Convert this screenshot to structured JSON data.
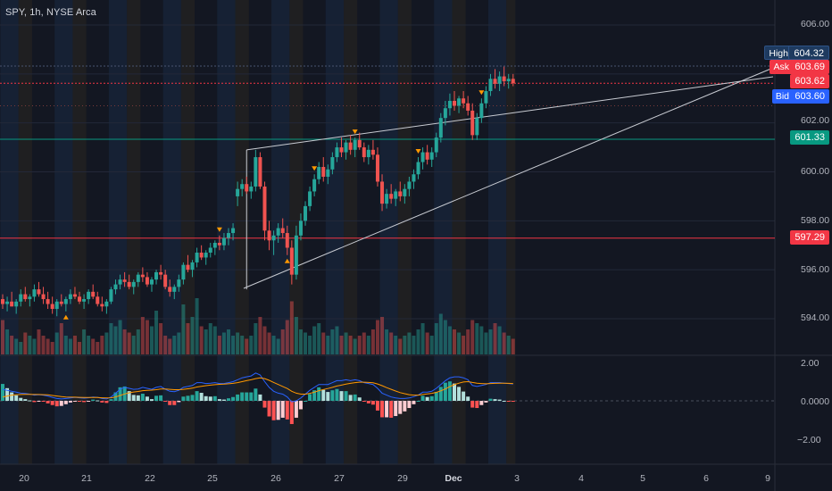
{
  "header": {
    "symbol": "SPY, 1h, NYSE Arca"
  },
  "price_axis": {
    "ticks": [
      "606.00",
      "604.00",
      "602.00",
      "600.00",
      "598.00",
      "596.00",
      "594.00"
    ],
    "tick_values": [
      606,
      604,
      602,
      600,
      598,
      596,
      594
    ],
    "high": {
      "label": "High",
      "value": "604.32",
      "color": "#1e3a5f"
    },
    "ask": {
      "label": "Ask",
      "value": "603.69",
      "color": "#f23645"
    },
    "last": {
      "value": "603.62",
      "color": "#f23645"
    },
    "bid": {
      "label": "Bid",
      "value": "603.60",
      "color": "#2962ff"
    },
    "level_green": {
      "value": "601.33",
      "color": "#089981"
    },
    "level_red": {
      "value": "597.29",
      "color": "#f23645"
    }
  },
  "macd_axis": {
    "ticks": [
      "2.00",
      "0.0000",
      "−2.00"
    ],
    "tick_values": [
      2,
      0,
      -2
    ]
  },
  "time_axis": {
    "labels": [
      "20",
      "21",
      "22",
      "25",
      "26",
      "27",
      "29",
      "Dec",
      "3",
      "4",
      "5",
      "6",
      "9"
    ]
  },
  "colors": {
    "up": "#26a69a",
    "down": "#ef5350",
    "session_blue": "#1a2a44",
    "session_orange": "#2a2620",
    "macd_line": "#2962ff",
    "signal_line": "#ff9800",
    "trend_line": "#c8cbd2",
    "marker": "#ff9800"
  },
  "chart_data": {
    "type": "candlestick",
    "price_range": [
      593.0,
      607.0
    ],
    "macd_range": [
      -3.0,
      2.4
    ],
    "levels": [
      601.33,
      597.29
    ],
    "candles": [
      [
        594.8,
        595.0,
        594.4,
        594.6
      ],
      [
        594.6,
        594.9,
        594.3,
        594.7
      ],
      [
        594.7,
        595.1,
        594.5,
        594.5
      ],
      [
        594.5,
        594.8,
        594.2,
        594.7
      ],
      [
        594.7,
        595.2,
        594.5,
        595.0
      ],
      [
        595.0,
        595.3,
        594.7,
        594.8
      ],
      [
        594.8,
        595.0,
        594.5,
        594.9
      ],
      [
        594.9,
        595.4,
        594.7,
        595.2
      ],
      [
        595.2,
        595.5,
        594.9,
        595.0
      ],
      [
        595.0,
        595.3,
        594.6,
        594.8
      ],
      [
        594.8,
        595.1,
        594.4,
        594.6
      ],
      [
        594.6,
        594.9,
        594.2,
        594.4
      ],
      [
        594.4,
        594.8,
        594.1,
        594.7
      ],
      [
        594.7,
        595.0,
        594.5,
        594.6
      ],
      [
        594.6,
        594.9,
        594.3,
        594.8
      ],
      [
        594.8,
        595.2,
        594.6,
        595.0
      ],
      [
        595.0,
        595.3,
        594.8,
        594.9
      ],
      [
        594.9,
        595.1,
        594.6,
        594.7
      ],
      [
        594.7,
        595.0,
        594.4,
        594.8
      ],
      [
        594.8,
        595.2,
        594.6,
        595.1
      ],
      [
        595.1,
        595.4,
        594.8,
        594.9
      ],
      [
        594.9,
        595.1,
        594.5,
        594.6
      ],
      [
        594.6,
        594.9,
        594.3,
        594.5
      ],
      [
        594.5,
        594.8,
        594.2,
        594.7
      ],
      [
        594.7,
        595.3,
        594.6,
        595.2
      ],
      [
        595.2,
        595.6,
        595.0,
        595.4
      ],
      [
        595.4,
        595.8,
        595.2,
        595.6
      ],
      [
        595.6,
        595.9,
        595.3,
        595.5
      ],
      [
        595.5,
        595.8,
        595.2,
        595.3
      ],
      [
        595.3,
        595.6,
        595.0,
        595.5
      ],
      [
        595.5,
        595.9,
        595.3,
        595.8
      ],
      [
        595.8,
        596.1,
        595.5,
        595.7
      ],
      [
        595.7,
        595.9,
        595.3,
        595.4
      ],
      [
        595.4,
        595.7,
        595.1,
        595.6
      ],
      [
        595.6,
        596.0,
        595.4,
        595.9
      ],
      [
        595.9,
        596.2,
        595.6,
        595.8
      ],
      [
        595.8,
        596.0,
        595.2,
        595.3
      ],
      [
        595.3,
        595.6,
        594.9,
        595.1
      ],
      [
        595.1,
        595.4,
        594.8,
        595.3
      ],
      [
        595.3,
        595.8,
        595.1,
        595.6
      ],
      [
        595.6,
        596.3,
        595.4,
        596.2
      ],
      [
        596.2,
        596.6,
        595.9,
        596.0
      ],
      [
        596.0,
        596.4,
        595.7,
        596.3
      ],
      [
        596.3,
        596.9,
        596.1,
        596.7
      ],
      [
        596.7,
        597.0,
        596.4,
        596.5
      ],
      [
        596.5,
        596.8,
        596.2,
        596.7
      ],
      [
        596.7,
        597.1,
        596.5,
        596.9
      ],
      [
        596.9,
        597.2,
        596.6,
        597.1
      ],
      [
        597.1,
        597.4,
        596.8,
        597.0
      ],
      [
        597.0,
        597.5,
        596.8,
        597.3
      ],
      [
        597.3,
        597.7,
        597.0,
        597.5
      ],
      [
        597.5,
        597.9,
        597.2,
        597.7
      ],
      [
        599.0,
        599.6,
        598.6,
        599.3
      ],
      [
        599.3,
        599.7,
        599.0,
        599.5
      ],
      [
        599.5,
        599.8,
        599.1,
        599.2
      ],
      [
        599.2,
        599.6,
        598.9,
        599.4
      ],
      [
        599.4,
        600.9,
        599.2,
        600.6
      ],
      [
        600.6,
        600.8,
        599.3,
        599.4
      ],
      [
        599.4,
        599.6,
        597.2,
        597.6
      ],
      [
        597.6,
        598.0,
        596.8,
        597.2
      ],
      [
        597.2,
        597.6,
        596.6,
        597.4
      ],
      [
        597.4,
        597.9,
        597.1,
        597.7
      ],
      [
        597.7,
        598.1,
        597.3,
        597.5
      ],
      [
        597.5,
        597.8,
        596.6,
        596.9
      ],
      [
        596.9,
        597.2,
        595.4,
        595.8
      ],
      [
        595.8,
        597.8,
        595.6,
        597.4
      ],
      [
        597.4,
        598.3,
        597.2,
        598.0
      ],
      [
        598.0,
        598.8,
        597.8,
        598.6
      ],
      [
        598.6,
        599.4,
        598.4,
        599.2
      ],
      [
        599.2,
        599.9,
        599.0,
        599.7
      ],
      [
        599.7,
        600.4,
        599.5,
        600.2
      ],
      [
        600.2,
        600.6,
        599.6,
        599.8
      ],
      [
        599.8,
        600.3,
        599.5,
        600.1
      ],
      [
        600.1,
        600.8,
        599.9,
        600.6
      ],
      [
        600.6,
        601.2,
        600.4,
        601.0
      ],
      [
        601.0,
        601.4,
        600.6,
        600.8
      ],
      [
        600.8,
        601.3,
        600.5,
        601.2
      ],
      [
        601.2,
        601.5,
        600.7,
        600.9
      ],
      [
        600.9,
        601.4,
        600.6,
        601.3
      ],
      [
        601.3,
        601.6,
        600.9,
        601.0
      ],
      [
        601.0,
        601.2,
        600.4,
        600.6
      ],
      [
        600.6,
        601.1,
        600.3,
        600.9
      ],
      [
        600.9,
        601.3,
        600.5,
        600.7
      ],
      [
        600.7,
        601.0,
        599.4,
        599.6
      ],
      [
        599.6,
        599.9,
        598.4,
        598.7
      ],
      [
        598.7,
        599.3,
        598.5,
        599.1
      ],
      [
        599.1,
        599.5,
        598.7,
        598.9
      ],
      [
        598.9,
        599.3,
        598.6,
        599.2
      ],
      [
        599.2,
        599.6,
        598.8,
        599.0
      ],
      [
        599.0,
        599.5,
        598.7,
        599.3
      ],
      [
        599.3,
        599.8,
        599.0,
        599.6
      ],
      [
        599.6,
        600.1,
        599.3,
        599.9
      ],
      [
        599.9,
        600.6,
        599.7,
        600.4
      ],
      [
        600.4,
        601.0,
        600.1,
        600.8
      ],
      [
        600.8,
        601.1,
        600.3,
        600.5
      ],
      [
        600.5,
        601.0,
        600.2,
        600.8
      ],
      [
        600.8,
        601.6,
        600.6,
        601.4
      ],
      [
        601.4,
        602.4,
        601.2,
        602.2
      ],
      [
        602.2,
        602.9,
        601.9,
        602.6
      ],
      [
        602.6,
        603.2,
        602.3,
        602.9
      ],
      [
        602.9,
        603.3,
        602.5,
        602.7
      ],
      [
        602.7,
        603.1,
        602.4,
        603.0
      ],
      [
        603.0,
        603.3,
        602.6,
        602.8
      ],
      [
        602.8,
        603.1,
        602.3,
        602.5
      ],
      [
        602.5,
        602.8,
        601.3,
        601.5
      ],
      [
        601.5,
        602.4,
        601.3,
        602.2
      ],
      [
        602.2,
        603.0,
        602.0,
        602.8
      ],
      [
        602.8,
        603.5,
        602.6,
        603.3
      ],
      [
        603.3,
        604.0,
        603.1,
        603.8
      ],
      [
        603.8,
        604.2,
        603.4,
        603.6
      ],
      [
        603.6,
        604.1,
        603.3,
        603.9
      ],
      [
        603.9,
        604.3,
        603.5,
        603.7
      ],
      [
        603.7,
        604.0,
        603.4,
        603.8
      ],
      [
        603.8,
        604.0,
        603.5,
        603.62
      ]
    ],
    "volumes": [
      0.55,
      0.4,
      0.3,
      0.25,
      0.2,
      0.35,
      0.3,
      0.25,
      0.4,
      0.3,
      0.25,
      0.2,
      0.35,
      0.5,
      0.3,
      0.25,
      0.3,
      0.2,
      0.4,
      0.3,
      0.25,
      0.2,
      0.3,
      0.35,
      0.5,
      0.45,
      0.55,
      0.4,
      0.35,
      0.3,
      0.4,
      0.6,
      0.55,
      0.45,
      0.7,
      0.5,
      0.3,
      0.25,
      0.3,
      0.35,
      0.8,
      0.5,
      0.6,
      0.9,
      0.45,
      0.4,
      0.5,
      0.45,
      0.3,
      0.35,
      0.4,
      0.3,
      0.35,
      0.3,
      0.25,
      0.3,
      0.5,
      0.6,
      0.45,
      0.35,
      0.3,
      0.25,
      0.4,
      0.55,
      0.85,
      0.6,
      0.4,
      0.35,
      0.3,
      0.45,
      0.5,
      0.35,
      0.3,
      0.4,
      0.45,
      0.3,
      0.35,
      0.3,
      0.25,
      0.3,
      0.35,
      0.3,
      0.4,
      0.55,
      0.6,
      0.4,
      0.35,
      0.3,
      0.25,
      0.3,
      0.35,
      0.3,
      0.4,
      0.5,
      0.35,
      0.3,
      0.5,
      0.65,
      0.55,
      0.45,
      0.4,
      0.35,
      0.3,
      0.4,
      0.55,
      0.5,
      0.45,
      0.35,
      0.4,
      0.5,
      0.45,
      0.35,
      0.3,
      0.25
    ],
    "macd": [
      0.6,
      0.55,
      0.5,
      0.45,
      0.4,
      0.38,
      0.35,
      0.3,
      0.32,
      0.3,
      0.25,
      0.18,
      0.12,
      0.1,
      0.12,
      0.15,
      0.18,
      0.16,
      0.14,
      0.16,
      0.2,
      0.18,
      0.12,
      0.1,
      0.2,
      0.4,
      0.6,
      0.7,
      0.65,
      0.6,
      0.62,
      0.7,
      0.65,
      0.6,
      0.7,
      0.75,
      0.6,
      0.5,
      0.48,
      0.55,
      0.7,
      0.75,
      0.8,
      0.95,
      0.95,
      0.9,
      0.92,
      0.95,
      0.9,
      0.9,
      0.95,
      1.0,
      1.1,
      1.2,
      1.25,
      1.3,
      1.45,
      1.35,
      1.0,
      0.7,
      0.5,
      0.4,
      0.35,
      0.2,
      -0.05,
      0.0,
      0.15,
      0.35,
      0.55,
      0.7,
      0.85,
      0.85,
      0.85,
      0.95,
      1.05,
      1.05,
      1.1,
      1.05,
      1.1,
      1.05,
      0.95,
      0.9,
      0.85,
      0.65,
      0.4,
      0.3,
      0.2,
      0.15,
      0.12,
      0.12,
      0.15,
      0.22,
      0.3,
      0.45,
      0.45,
      0.5,
      0.65,
      0.85,
      1.05,
      1.2,
      1.25,
      1.25,
      1.2,
      1.1,
      0.8,
      0.75,
      0.8,
      0.85,
      0.95,
      0.95,
      0.95,
      0.92,
      0.9,
      0.88
    ],
    "signal": [
      0.2,
      0.25,
      0.3,
      0.32,
      0.33,
      0.34,
      0.34,
      0.33,
      0.33,
      0.32,
      0.31,
      0.28,
      0.25,
      0.22,
      0.2,
      0.19,
      0.19,
      0.18,
      0.17,
      0.17,
      0.17,
      0.17,
      0.16,
      0.15,
      0.16,
      0.2,
      0.28,
      0.36,
      0.42,
      0.46,
      0.49,
      0.53,
      0.55,
      0.56,
      0.58,
      0.62,
      0.62,
      0.6,
      0.58,
      0.58,
      0.6,
      0.63,
      0.66,
      0.72,
      0.76,
      0.79,
      0.82,
      0.84,
      0.86,
      0.87,
      0.89,
      0.91,
      0.95,
      1.0,
      1.05,
      1.1,
      1.16,
      1.2,
      1.16,
      1.07,
      0.96,
      0.85,
      0.75,
      0.64,
      0.5,
      0.4,
      0.35,
      0.35,
      0.39,
      0.45,
      0.53,
      0.59,
      0.64,
      0.7,
      0.77,
      0.82,
      0.87,
      0.91,
      0.95,
      0.97,
      0.97,
      0.96,
      0.94,
      0.88,
      0.79,
      0.69,
      0.6,
      0.51,
      0.43,
      0.37,
      0.32,
      0.3,
      0.3,
      0.33,
      0.36,
      0.39,
      0.44,
      0.52,
      0.62,
      0.74,
      0.84,
      0.92,
      0.98,
      1.0,
      0.96,
      0.92,
      0.9,
      0.89,
      0.9,
      0.91,
      0.92,
      0.92,
      0.91,
      0.9
    ],
    "markers": [
      {
        "index": 14,
        "dir": "up"
      },
      {
        "index": 48,
        "dir": "down"
      },
      {
        "index": 63,
        "dir": "up"
      },
      {
        "index": 69,
        "dir": "down"
      },
      {
        "index": 78,
        "dir": "down"
      },
      {
        "index": 92,
        "dir": "down"
      },
      {
        "index": 106,
        "dir": "down"
      }
    ],
    "trendlines": [
      {
        "from": [
          54,
          600.9
        ],
        "to": [
          131,
          603.6
        ]
      },
      {
        "from": [
          54,
          600.9
        ],
        "to": [
          54,
          595.2
        ]
      },
      {
        "from": [
          54,
          595.2
        ],
        "to": [
          131,
          603.6
        ]
      }
    ],
    "sessions": [
      {
        "start": 0,
        "end": 4,
        "kind": "blue"
      },
      {
        "start": 4,
        "end": 7,
        "kind": "orange"
      },
      {
        "start": 12,
        "end": 16,
        "kind": "blue"
      },
      {
        "start": 16,
        "end": 19,
        "kind": "orange"
      },
      {
        "start": 24,
        "end": 28,
        "kind": "blue"
      },
      {
        "start": 28,
        "end": 31,
        "kind": "orange"
      },
      {
        "start": 36,
        "end": 40,
        "kind": "blue"
      },
      {
        "start": 40,
        "end": 43,
        "kind": "orange"
      },
      {
        "start": 48,
        "end": 52,
        "kind": "blue"
      },
      {
        "start": 52,
        "end": 55,
        "kind": "orange"
      },
      {
        "start": 60,
        "end": 64,
        "kind": "blue"
      },
      {
        "start": 64,
        "end": 67,
        "kind": "orange"
      },
      {
        "start": 72,
        "end": 76,
        "kind": "blue"
      },
      {
        "start": 76,
        "end": 79,
        "kind": "orange"
      },
      {
        "start": 84,
        "end": 88,
        "kind": "blue"
      },
      {
        "start": 88,
        "end": 91,
        "kind": "orange"
      },
      {
        "start": 96,
        "end": 100,
        "kind": "blue"
      },
      {
        "start": 100,
        "end": 103,
        "kind": "orange"
      },
      {
        "start": 108,
        "end": 112,
        "kind": "blue"
      },
      {
        "start": 112,
        "end": 114,
        "kind": "orange"
      }
    ]
  }
}
